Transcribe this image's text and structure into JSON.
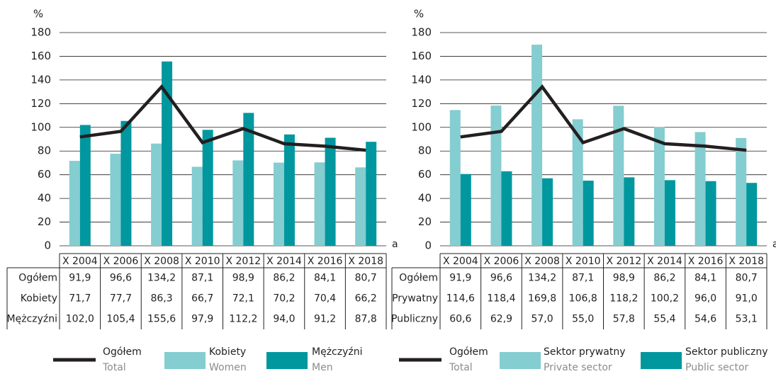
{
  "chart_data": [
    {
      "type": "bar",
      "y_label": "%",
      "note": "a",
      "categories": [
        "X 2004",
        "X 2006",
        "X 2008",
        "X 2010",
        "X 2012",
        "X 2014",
        "X 2016",
        "X 2018"
      ],
      "ylim": [
        0,
        180
      ],
      "yticks": [
        0,
        20,
        40,
        60,
        80,
        100,
        120,
        140,
        160,
        180
      ],
      "grid": true,
      "series": [
        {
          "name": "Ogółem",
          "name_en": "Total",
          "table_label": "Ogółem",
          "type": "line",
          "color": "#231f20",
          "values": [
            91.9,
            96.6,
            134.2,
            87.1,
            98.9,
            86.2,
            84.1,
            80.7
          ],
          "value_labels": [
            "91,9",
            "96,6",
            "134,2",
            "87,1",
            "98,9",
            "86,2",
            "84,1",
            "80,7"
          ]
        },
        {
          "name": "Kobiety",
          "name_en": "Women",
          "table_label": "Kobiety",
          "type": "bar",
          "color": "#84cdd0",
          "values": [
            71.7,
            77.7,
            86.3,
            66.7,
            72.1,
            70.2,
            70.4,
            66.2
          ],
          "value_labels": [
            "71,7",
            "77,7",
            "86,3",
            "66,7",
            "72,1",
            "70,2",
            "70,4",
            "66,2"
          ]
        },
        {
          "name": "Mężczyźni",
          "name_en": "Men",
          "table_label": "Mężczyźni",
          "type": "bar",
          "color": "#00979e",
          "values": [
            102.0,
            105.4,
            155.6,
            97.9,
            112.2,
            94.0,
            91.2,
            87.8
          ],
          "value_labels": [
            "102,0",
            "105,4",
            "155,6",
            "97,9",
            "112,2",
            "94,0",
            "91,2",
            "87,8"
          ]
        }
      ]
    },
    {
      "type": "bar",
      "y_label": "%",
      "note": "a",
      "categories": [
        "X 2004",
        "X 2006",
        "X 2008",
        "X 2010",
        "X 2012",
        "X 2014",
        "X 2016",
        "X 2018"
      ],
      "ylim": [
        0,
        180
      ],
      "yticks": [
        0,
        20,
        40,
        60,
        80,
        100,
        120,
        140,
        160,
        180
      ],
      "grid": true,
      "series": [
        {
          "name": "Ogółem",
          "name_en": "Total",
          "table_label": "Ogółem",
          "type": "line",
          "color": "#231f20",
          "values": [
            91.9,
            96.6,
            134.2,
            87.1,
            98.9,
            86.2,
            84.1,
            80.7
          ],
          "value_labels": [
            "91,9",
            "96,6",
            "134,2",
            "87,1",
            "98,9",
            "86,2",
            "84,1",
            "80,7"
          ]
        },
        {
          "name": "Sektor prywatny",
          "name_en": "Private sector",
          "table_label": "Prywatny",
          "type": "bar",
          "color": "#84cdd0",
          "values": [
            114.6,
            118.4,
            169.8,
            106.8,
            118.2,
            100.2,
            96.0,
            91.0
          ],
          "value_labels": [
            "114,6",
            "118,4",
            "169,8",
            "106,8",
            "118,2",
            "100,2",
            "96,0",
            "91,0"
          ]
        },
        {
          "name": "Sektor publiczny",
          "name_en": "Public sector",
          "table_label": "Publiczny",
          "type": "bar",
          "color": "#00979e",
          "values": [
            60.6,
            62.9,
            57.0,
            55.0,
            57.8,
            55.4,
            54.6,
            53.1
          ],
          "value_labels": [
            "60,6",
            "62,9",
            "57,0",
            "55,0",
            "57,8",
            "55,4",
            "54,6",
            "53,1"
          ]
        }
      ]
    }
  ]
}
